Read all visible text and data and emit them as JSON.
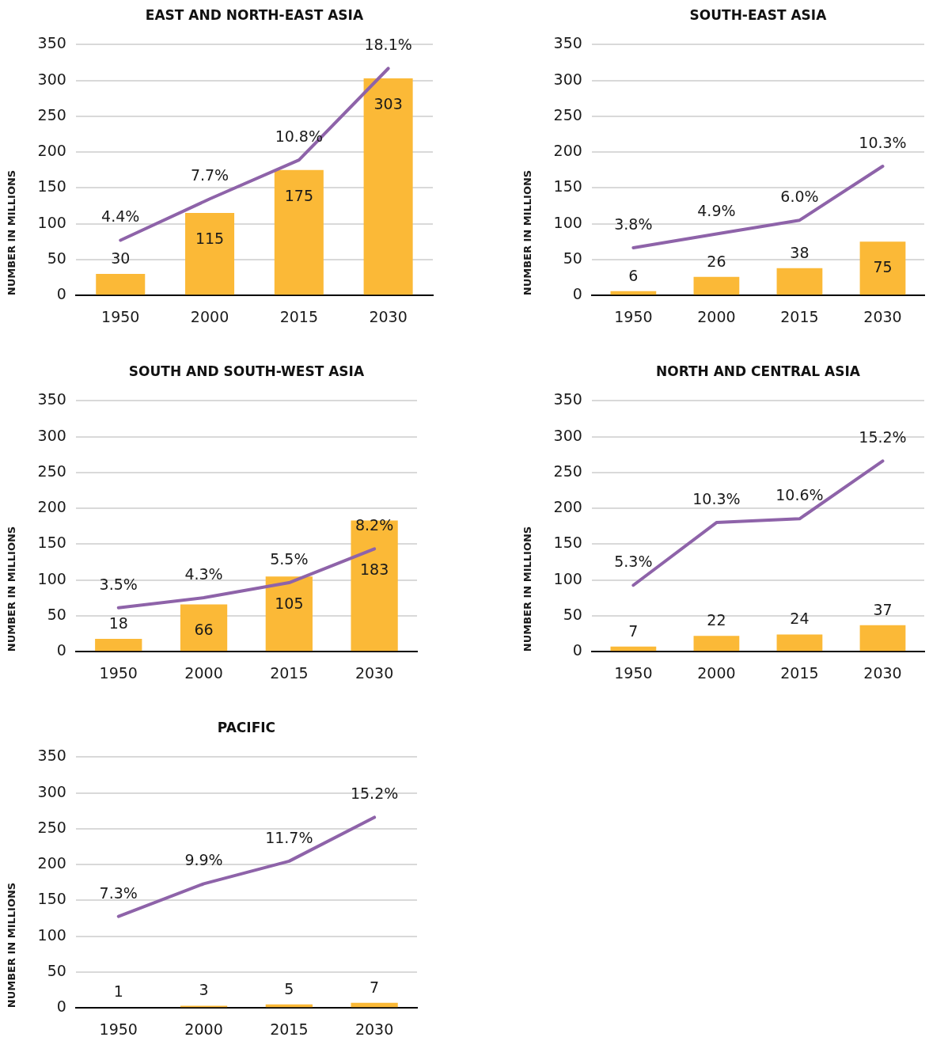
{
  "chart_data": [
    {
      "type": "bar",
      "title": "EAST AND NORTH-EAST ASIA",
      "ylabel": "NUMBER IN MILLIONS",
      "categories": [
        "1950",
        "2000",
        "2015",
        "2030"
      ],
      "series": [
        {
          "color": "#fbb937",
          "values": [
            30,
            115,
            175,
            303
          ],
          "value_labels": [
            "30",
            "115",
            "175",
            "303"
          ]
        },
        {
          "type": "line",
          "axis": "y2",
          "color": "#8e63a9",
          "line_style": "solid",
          "values": [
            4.4,
            7.7,
            10.8,
            18.1
          ],
          "value_labels": [
            "4.4%",
            "7.7%",
            "10.8%",
            "18.1%"
          ]
        }
      ],
      "ylim": [
        0,
        350
      ],
      "yticks": [
        0,
        50,
        100,
        150,
        200,
        250,
        300,
        350
      ],
      "y2lim": [
        0,
        20
      ],
      "grid": "y"
    },
    {
      "type": "bar",
      "title": "SOUTH-EAST ASIA",
      "ylabel": "NUMBER IN MILLIONS",
      "categories": [
        "1950",
        "2000",
        "2015",
        "2030"
      ],
      "series": [
        {
          "color": "#fbb937",
          "values": [
            6,
            26,
            38,
            75
          ],
          "value_labels": [
            "6",
            "26",
            "38",
            "75"
          ]
        },
        {
          "type": "line",
          "axis": "y2",
          "color": "#8e63a9",
          "line_style": "solid",
          "values": [
            3.8,
            4.9,
            6.0,
            10.3
          ],
          "value_labels": [
            "3.8%",
            "4.9%",
            "6.0%",
            "10.3%"
          ]
        }
      ],
      "ylim": [
        0,
        350
      ],
      "yticks": [
        0,
        50,
        100,
        150,
        200,
        250,
        300,
        350
      ],
      "y2lim": [
        0,
        20
      ],
      "grid": "y"
    },
    {
      "type": "bar",
      "title": "SOUTH AND SOUTH-WEST ASIA",
      "ylabel": "NUMBER IN MILLIONS",
      "categories": [
        "1950",
        "2000",
        "2015",
        "2030"
      ],
      "series": [
        {
          "color": "#fbb937",
          "values": [
            18,
            66,
            105,
            183
          ],
          "value_labels": [
            "18",
            "66",
            "105",
            "183"
          ]
        },
        {
          "type": "line",
          "axis": "y2",
          "color": "#8e63a9",
          "line_style": "solid",
          "values": [
            3.5,
            4.3,
            5.5,
            8.2
          ],
          "value_labels": [
            "3.5%",
            "4.3%",
            "5.5%",
            "8.2%"
          ]
        }
      ],
      "ylim": [
        0,
        350
      ],
      "yticks": [
        0,
        50,
        100,
        150,
        200,
        250,
        300,
        350
      ],
      "y2lim": [
        0,
        20
      ],
      "grid": "y"
    },
    {
      "type": "bar",
      "title": "NORTH AND CENTRAL ASIA",
      "ylabel": "NUMBER IN MILLIONS",
      "categories": [
        "1950",
        "2000",
        "2015",
        "2030"
      ],
      "series": [
        {
          "color": "#fbb937",
          "values": [
            7,
            22,
            24,
            37
          ],
          "value_labels": [
            "7",
            "22",
            "24",
            "37"
          ]
        },
        {
          "type": "line",
          "axis": "y2",
          "color": "#8e63a9",
          "line_style": "solid",
          "values": [
            5.3,
            10.3,
            10.6,
            15.2
          ],
          "value_labels": [
            "5.3%",
            "10.3%",
            "10.6%",
            "15.2%"
          ]
        }
      ],
      "ylim": [
        0,
        350
      ],
      "yticks": [
        0,
        50,
        100,
        150,
        200,
        250,
        300,
        350
      ],
      "y2lim": [
        0,
        20
      ],
      "grid": "y"
    },
    {
      "type": "bar",
      "title": "PACIFIC",
      "ylabel": "NUMBER IN MILLIONS",
      "categories": [
        "1950",
        "2000",
        "2015",
        "2030"
      ],
      "series": [
        {
          "color": "#fbb937",
          "values": [
            1,
            3,
            5,
            7
          ],
          "value_labels": [
            "1",
            "3",
            "5",
            "7"
          ]
        },
        {
          "type": "line",
          "axis": "y2",
          "color": "#8e63a9",
          "line_style": "solid",
          "values": [
            7.3,
            9.9,
            11.7,
            15.2
          ],
          "value_labels": [
            "7.3%",
            "9.9%",
            "11.7%",
            "15.2%"
          ]
        }
      ],
      "ylim": [
        0,
        350
      ],
      "yticks": [
        0,
        50,
        100,
        150,
        200,
        250,
        300,
        350
      ],
      "y2lim": [
        0,
        20
      ],
      "grid": "y"
    }
  ]
}
